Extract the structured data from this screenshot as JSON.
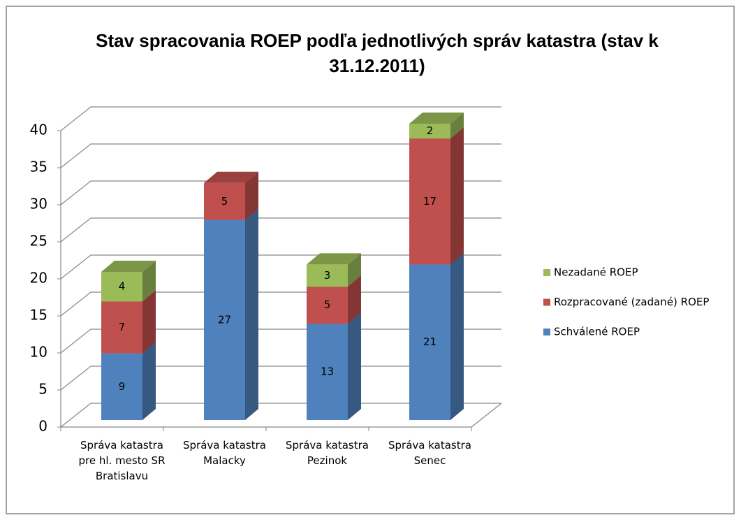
{
  "chart_data": {
    "type": "bar3d_stacked",
    "title": "Stav spracovania ROEP podľa jednotlivých správ katastra (stav k 31.12.2011)",
    "categories": [
      "Správa katastra pre hl. mesto SR Bratislavu",
      "Správa katastra Malacky",
      "Správa katastra Pezinok",
      "Správa katastra Senec"
    ],
    "series": [
      {
        "name": "Schválené ROEP",
        "color": "#4f81bd",
        "values": [
          9,
          27,
          13,
          21
        ]
      },
      {
        "name": "Rozpracované (zadané) ROEP",
        "color": "#c0504d",
        "values": [
          7,
          5,
          5,
          17
        ]
      },
      {
        "name": "Nezadané ROEP",
        "color": "#9bbb59",
        "values": [
          4,
          null,
          3,
          2
        ]
      }
    ],
    "ylim": [
      0,
      40
    ],
    "yticks": [
      0,
      5,
      10,
      15,
      20,
      25,
      30,
      35,
      40
    ],
    "grid": true,
    "legend": "right"
  }
}
